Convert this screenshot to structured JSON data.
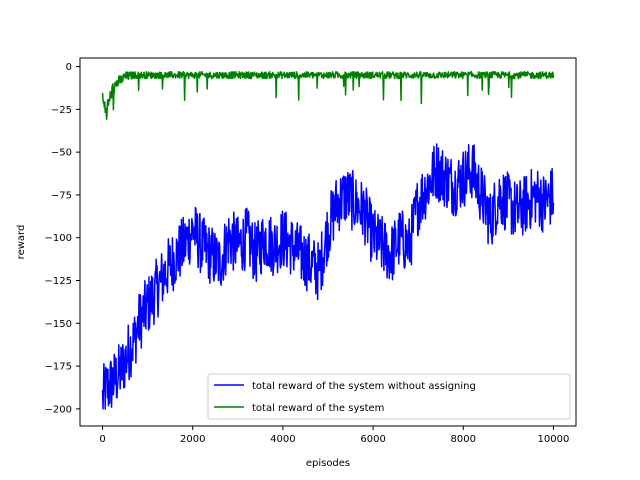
{
  "chart_data": {
    "type": "line",
    "title": "",
    "xlabel": "episodes",
    "ylabel": "reward",
    "xlim": [
      -500,
      10500
    ],
    "ylim": [
      -210,
      5
    ],
    "x_ticks": [
      0,
      2000,
      4000,
      6000,
      8000,
      10000
    ],
    "y_ticks": [
      0,
      -25,
      -50,
      -75,
      -100,
      -125,
      -150,
      -175,
      -200
    ],
    "grid": false,
    "legend_position": "lower-right",
    "series": [
      {
        "name": "total reward of the system without assigning",
        "color": "#0000ff",
        "x": [
          0,
          100,
          200,
          300,
          400,
          500,
          600,
          700,
          800,
          900,
          1000,
          1200,
          1400,
          1600,
          1800,
          2000,
          2200,
          2400,
          2600,
          2800,
          3000,
          3200,
          3400,
          3600,
          3800,
          4000,
          4200,
          4400,
          4600,
          4800,
          5000,
          5200,
          5400,
          5600,
          5800,
          6000,
          6200,
          6400,
          6600,
          6800,
          7000,
          7200,
          7400,
          7600,
          7800,
          8000,
          8200,
          8400,
          8600,
          8800,
          9000,
          9200,
          9400,
          9600,
          9800,
          10000
        ],
        "values": [
          -195,
          -188,
          -185,
          -182,
          -178,
          -172,
          -165,
          -160,
          -150,
          -145,
          -140,
          -130,
          -120,
          -112,
          -105,
          -95,
          -105,
          -110,
          -115,
          -100,
          -105,
          -100,
          -110,
          -100,
          -105,
          -100,
          -105,
          -110,
          -115,
          -120,
          -95,
          -80,
          -75,
          -80,
          -85,
          -100,
          -105,
          -110,
          -100,
          -105,
          -80,
          -70,
          -60,
          -65,
          -70,
          -65,
          -60,
          -75,
          -90,
          -75,
          -80,
          -85,
          -80,
          -75,
          -80,
          -75
        ],
        "band": [
          20,
          18,
          18,
          18,
          18,
          18,
          18,
          18,
          18,
          18,
          18,
          18,
          18,
          18,
          18,
          18,
          18,
          18,
          18,
          18,
          18,
          18,
          18,
          18,
          18,
          18,
          18,
          18,
          18,
          18,
          18,
          18,
          18,
          18,
          18,
          18,
          18,
          18,
          18,
          18,
          18,
          18,
          18,
          18,
          18,
          18,
          18,
          18,
          18,
          18,
          18,
          18,
          18,
          18,
          18,
          18
        ]
      },
      {
        "name": "total reward of the system",
        "color": "#008000",
        "x": [
          0,
          50,
          100,
          150,
          200,
          300,
          400,
          500,
          700,
          1000,
          1500,
          2000,
          3000,
          4000,
          5000,
          6000,
          7000,
          8000,
          9000,
          10000
        ],
        "values": [
          -20,
          -24,
          -25,
          -20,
          -15,
          -10,
          -8,
          -6,
          -5,
          -5,
          -5,
          -5,
          -5,
          -5,
          -5,
          -5,
          -5,
          -5,
          -5,
          -5
        ],
        "band": [
          8,
          6,
          6,
          5,
          4,
          4,
          3,
          3,
          2,
          2,
          2,
          2,
          2,
          2,
          2,
          2,
          2,
          2,
          2,
          2
        ]
      }
    ]
  }
}
